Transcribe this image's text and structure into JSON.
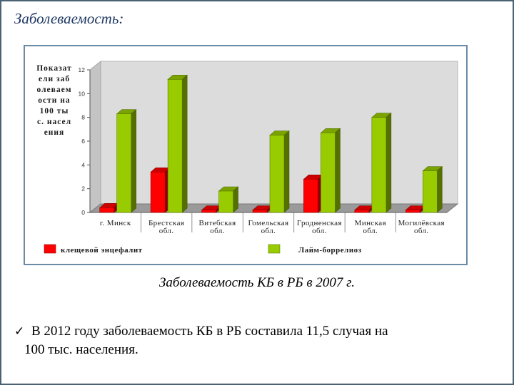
{
  "slide": {
    "title": "Заболеваемость:",
    "caption": "Заболеваемость КБ в РБ в 2007 г.",
    "bullet_line1": "В 2012 году заболеваемость КБ в РБ составила 11,5 случая на",
    "bullet_line2": "100 тыс. населения.",
    "bullet_icon": "checkmark-icon"
  },
  "chart_data": {
    "type": "bar",
    "ylabel": "Показатели заболеваемости на 100 тыс. населения",
    "ylim": [
      0,
      12
    ],
    "yticks": [
      0,
      2,
      4,
      6,
      8,
      10,
      12
    ],
    "categories": [
      [
        "г. Минск"
      ],
      [
        "Брестская",
        "обл."
      ],
      [
        "Витебская",
        "обл."
      ],
      [
        "Гомельская",
        "обл."
      ],
      [
        "Гродненская",
        "обл."
      ],
      [
        "Минская",
        "обл."
      ],
      [
        "Могилёвская",
        "обл."
      ]
    ],
    "series": [
      {
        "name": "клещевой энцефалит",
        "color": "#ff0000",
        "values": [
          0.4,
          3.4,
          0.2,
          0.2,
          2.8,
          0.2,
          0.2
        ]
      },
      {
        "name": "Лайм-боррелиоз",
        "color": "#99cc00",
        "values": [
          8.3,
          11.2,
          1.8,
          6.5,
          6.7,
          8.0,
          3.5
        ]
      }
    ],
    "grid": false,
    "legend": "bottom"
  }
}
